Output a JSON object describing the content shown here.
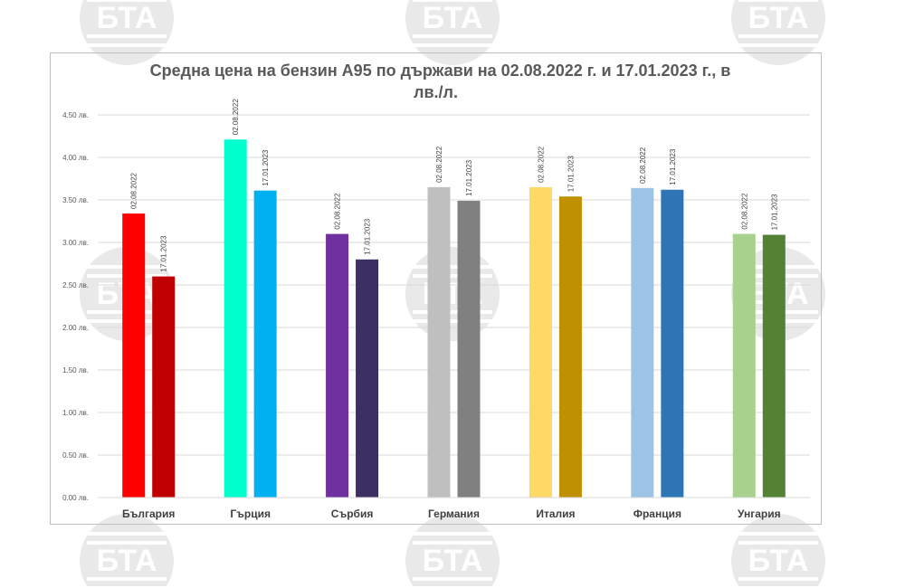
{
  "chart_data": {
    "type": "bar",
    "title": "Средна цена на бензин А95 по държави на 02.08.2022 г. и 17.01.2023 г., в лв./л.",
    "title_line1": "Средна цена на бензин А95 по държави на 02.08.2022 г. и 17.01.2023 г., в",
    "title_line2": "лв./л.",
    "categories": [
      "България",
      "Гърция",
      "Сърбия",
      "Германия",
      "Италия",
      "Франция",
      "Унгария"
    ],
    "series": [
      {
        "name": "02.08.2022",
        "values": [
          3.34,
          4.21,
          3.1,
          3.65,
          3.65,
          3.64,
          3.1
        ]
      },
      {
        "name": "17.01.2023",
        "values": [
          2.6,
          3.61,
          2.8,
          3.49,
          3.54,
          3.62,
          3.09
        ]
      }
    ],
    "bar_labels": [
      "02.08.2022",
      "17.01.2023"
    ],
    "bar_colors": [
      [
        "#ff0000",
        "#c00000"
      ],
      [
        "#00ffcc",
        "#00b0f0"
      ],
      [
        "#7030a0",
        "#3b2f63"
      ],
      [
        "#bfbfbf",
        "#808080"
      ],
      [
        "#ffd966",
        "#bf9000"
      ],
      [
        "#9dc3e6",
        "#2e75b6"
      ],
      [
        "#a9d18e",
        "#548235"
      ]
    ],
    "ylim": [
      0,
      4.5
    ],
    "ytick_values": [
      0,
      0.5,
      1.0,
      1.5,
      2.0,
      2.5,
      3.0,
      3.5,
      4.0,
      4.5
    ],
    "ytick_labels": [
      "0.00 лв.",
      "0.50 лв.",
      "1.00 лв.",
      "1.50 лв.",
      "2.00 лв.",
      "2.50 лв.",
      "3.00 лв.",
      "3.50 лв.",
      "4.00 лв.",
      "4.50 лв."
    ],
    "xlabel": "",
    "ylabel": "",
    "grid": true,
    "legend": "none"
  },
  "watermark": {
    "text": "БТА",
    "color": "#e9e9e9"
  }
}
